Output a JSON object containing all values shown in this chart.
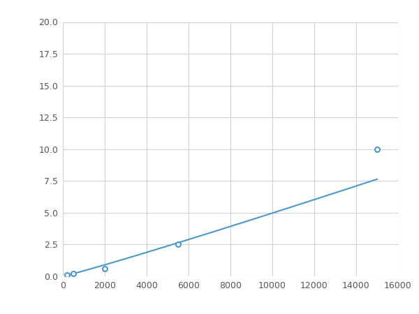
{
  "x_points": [
    200,
    500,
    2000,
    5500,
    15000
  ],
  "y_points": [
    0.1,
    0.2,
    0.6,
    2.5,
    10.0
  ],
  "xlim": [
    0,
    16000
  ],
  "ylim": [
    0,
    20.0
  ],
  "xticks": [
    0,
    2000,
    4000,
    6000,
    8000,
    10000,
    12000,
    14000,
    16000
  ],
  "yticks": [
    0.0,
    2.5,
    5.0,
    7.5,
    10.0,
    12.5,
    15.0,
    17.5,
    20.0
  ],
  "line_color": "#4d96c9",
  "marker_color": "#4d96c9",
  "marker_size": 5,
  "line_width": 1.5,
  "grid_color": "#d0d0d0",
  "background_color": "#ffffff",
  "figsize": [
    6.0,
    4.5
  ],
  "dpi": 100
}
